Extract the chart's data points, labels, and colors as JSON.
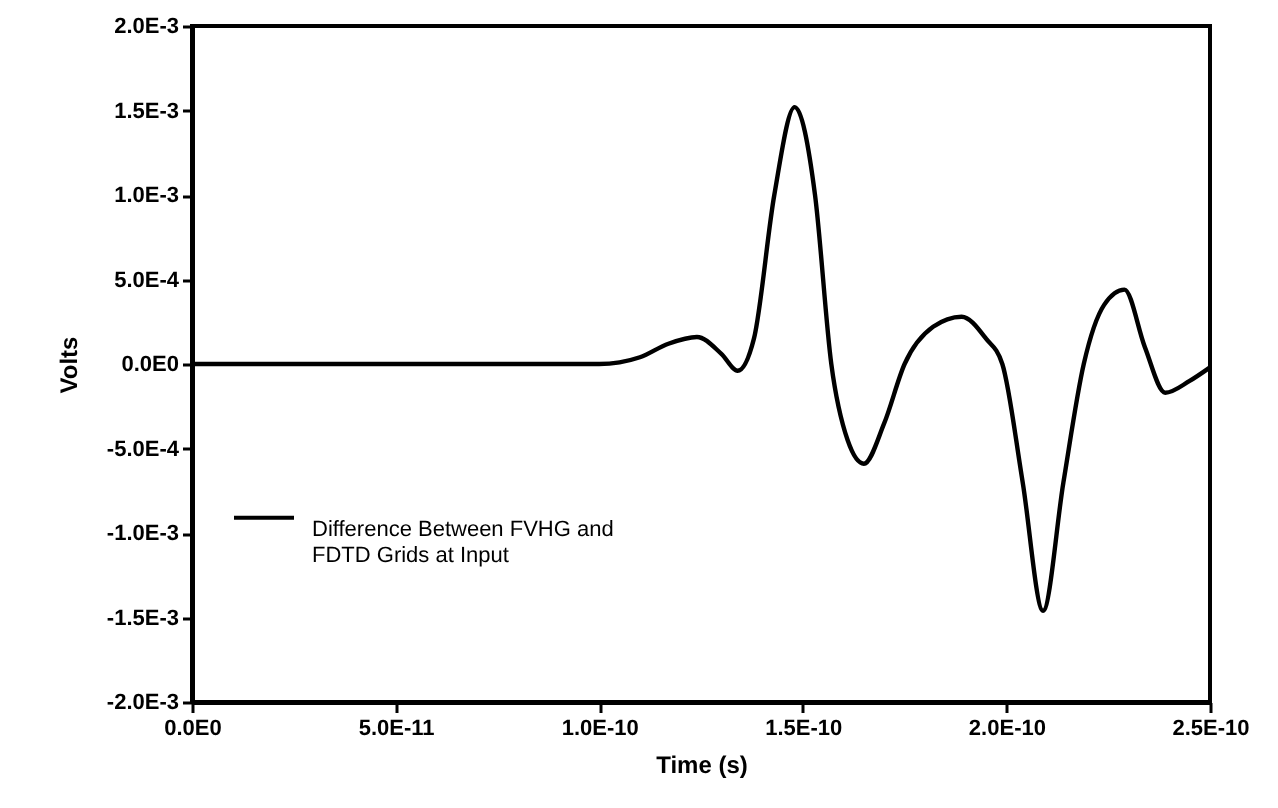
{
  "chart_data": {
    "type": "line",
    "xlabel": "Time (s)",
    "ylabel": "Volts",
    "x": [
      0,
      1e-10,
      1.05e-10,
      1.1e-10,
      1.17e-10,
      1.24e-10,
      1.3e-10,
      1.34e-10,
      1.38e-10,
      1.43e-10,
      1.48e-10,
      1.53e-10,
      1.57e-10,
      1.61e-10,
      1.65e-10,
      1.7e-10,
      1.75e-10,
      1.82e-10,
      1.89e-10,
      1.95e-10,
      1.99e-10,
      2.04e-10,
      2.09e-10,
      2.14e-10,
      2.19e-10,
      2.24e-10,
      2.29e-10,
      2.34e-10,
      2.39e-10,
      2.45e-10,
      2.5e-10
    ],
    "series": [
      {
        "name": "Difference Between FVHG and FDTD Grids at Input",
        "color": "#000000",
        "values": [
          0,
          0,
          1e-05,
          4e-05,
          0.00012,
          0.00016,
          6e-05,
          -4e-05,
          0.00015,
          0.001,
          0.00152,
          0.001,
          0,
          -0.00045,
          -0.00059,
          -0.00035,
          0,
          0.00022,
          0.00028,
          0.00015,
          0,
          -0.0007,
          -0.00146,
          -0.0007,
          0,
          0.00035,
          0.00044,
          0.0001,
          -0.00017,
          -0.0001,
          -2e-05
        ]
      }
    ],
    "xlim": [
      0,
      2.5e-10
    ],
    "xticks": [
      {
        "value": 0,
        "label": "0.0E0"
      },
      {
        "value": 5e-11,
        "label": "5.0E-11"
      },
      {
        "value": 1e-10,
        "label": "1.0E-10"
      },
      {
        "value": 1.5e-10,
        "label": "1.5E-10"
      },
      {
        "value": 2e-10,
        "label": "2.0E-10"
      },
      {
        "value": 2.5e-10,
        "label": "2.5E-10"
      }
    ],
    "ylim": [
      -0.002,
      0.002
    ],
    "yticks": [
      {
        "value": -0.002,
        "label": "-2.0E-3"
      },
      {
        "value": -0.0015,
        "label": "-1.5E-3"
      },
      {
        "value": -0.001,
        "label": "-1.0E-3"
      },
      {
        "value": -0.0005,
        "label": "-5.0E-4"
      },
      {
        "value": 0,
        "label": "0.0E0"
      },
      {
        "value": 0.0005,
        "label": "5.0E-4"
      },
      {
        "value": 0.001,
        "label": "1.0E-3"
      },
      {
        "value": 0.0015,
        "label": "1.5E-3"
      },
      {
        "value": 0.002,
        "label": "2.0E-3"
      }
    ],
    "legend": "left",
    "marker": "none",
    "line_style": "solid",
    "grid": false
  }
}
